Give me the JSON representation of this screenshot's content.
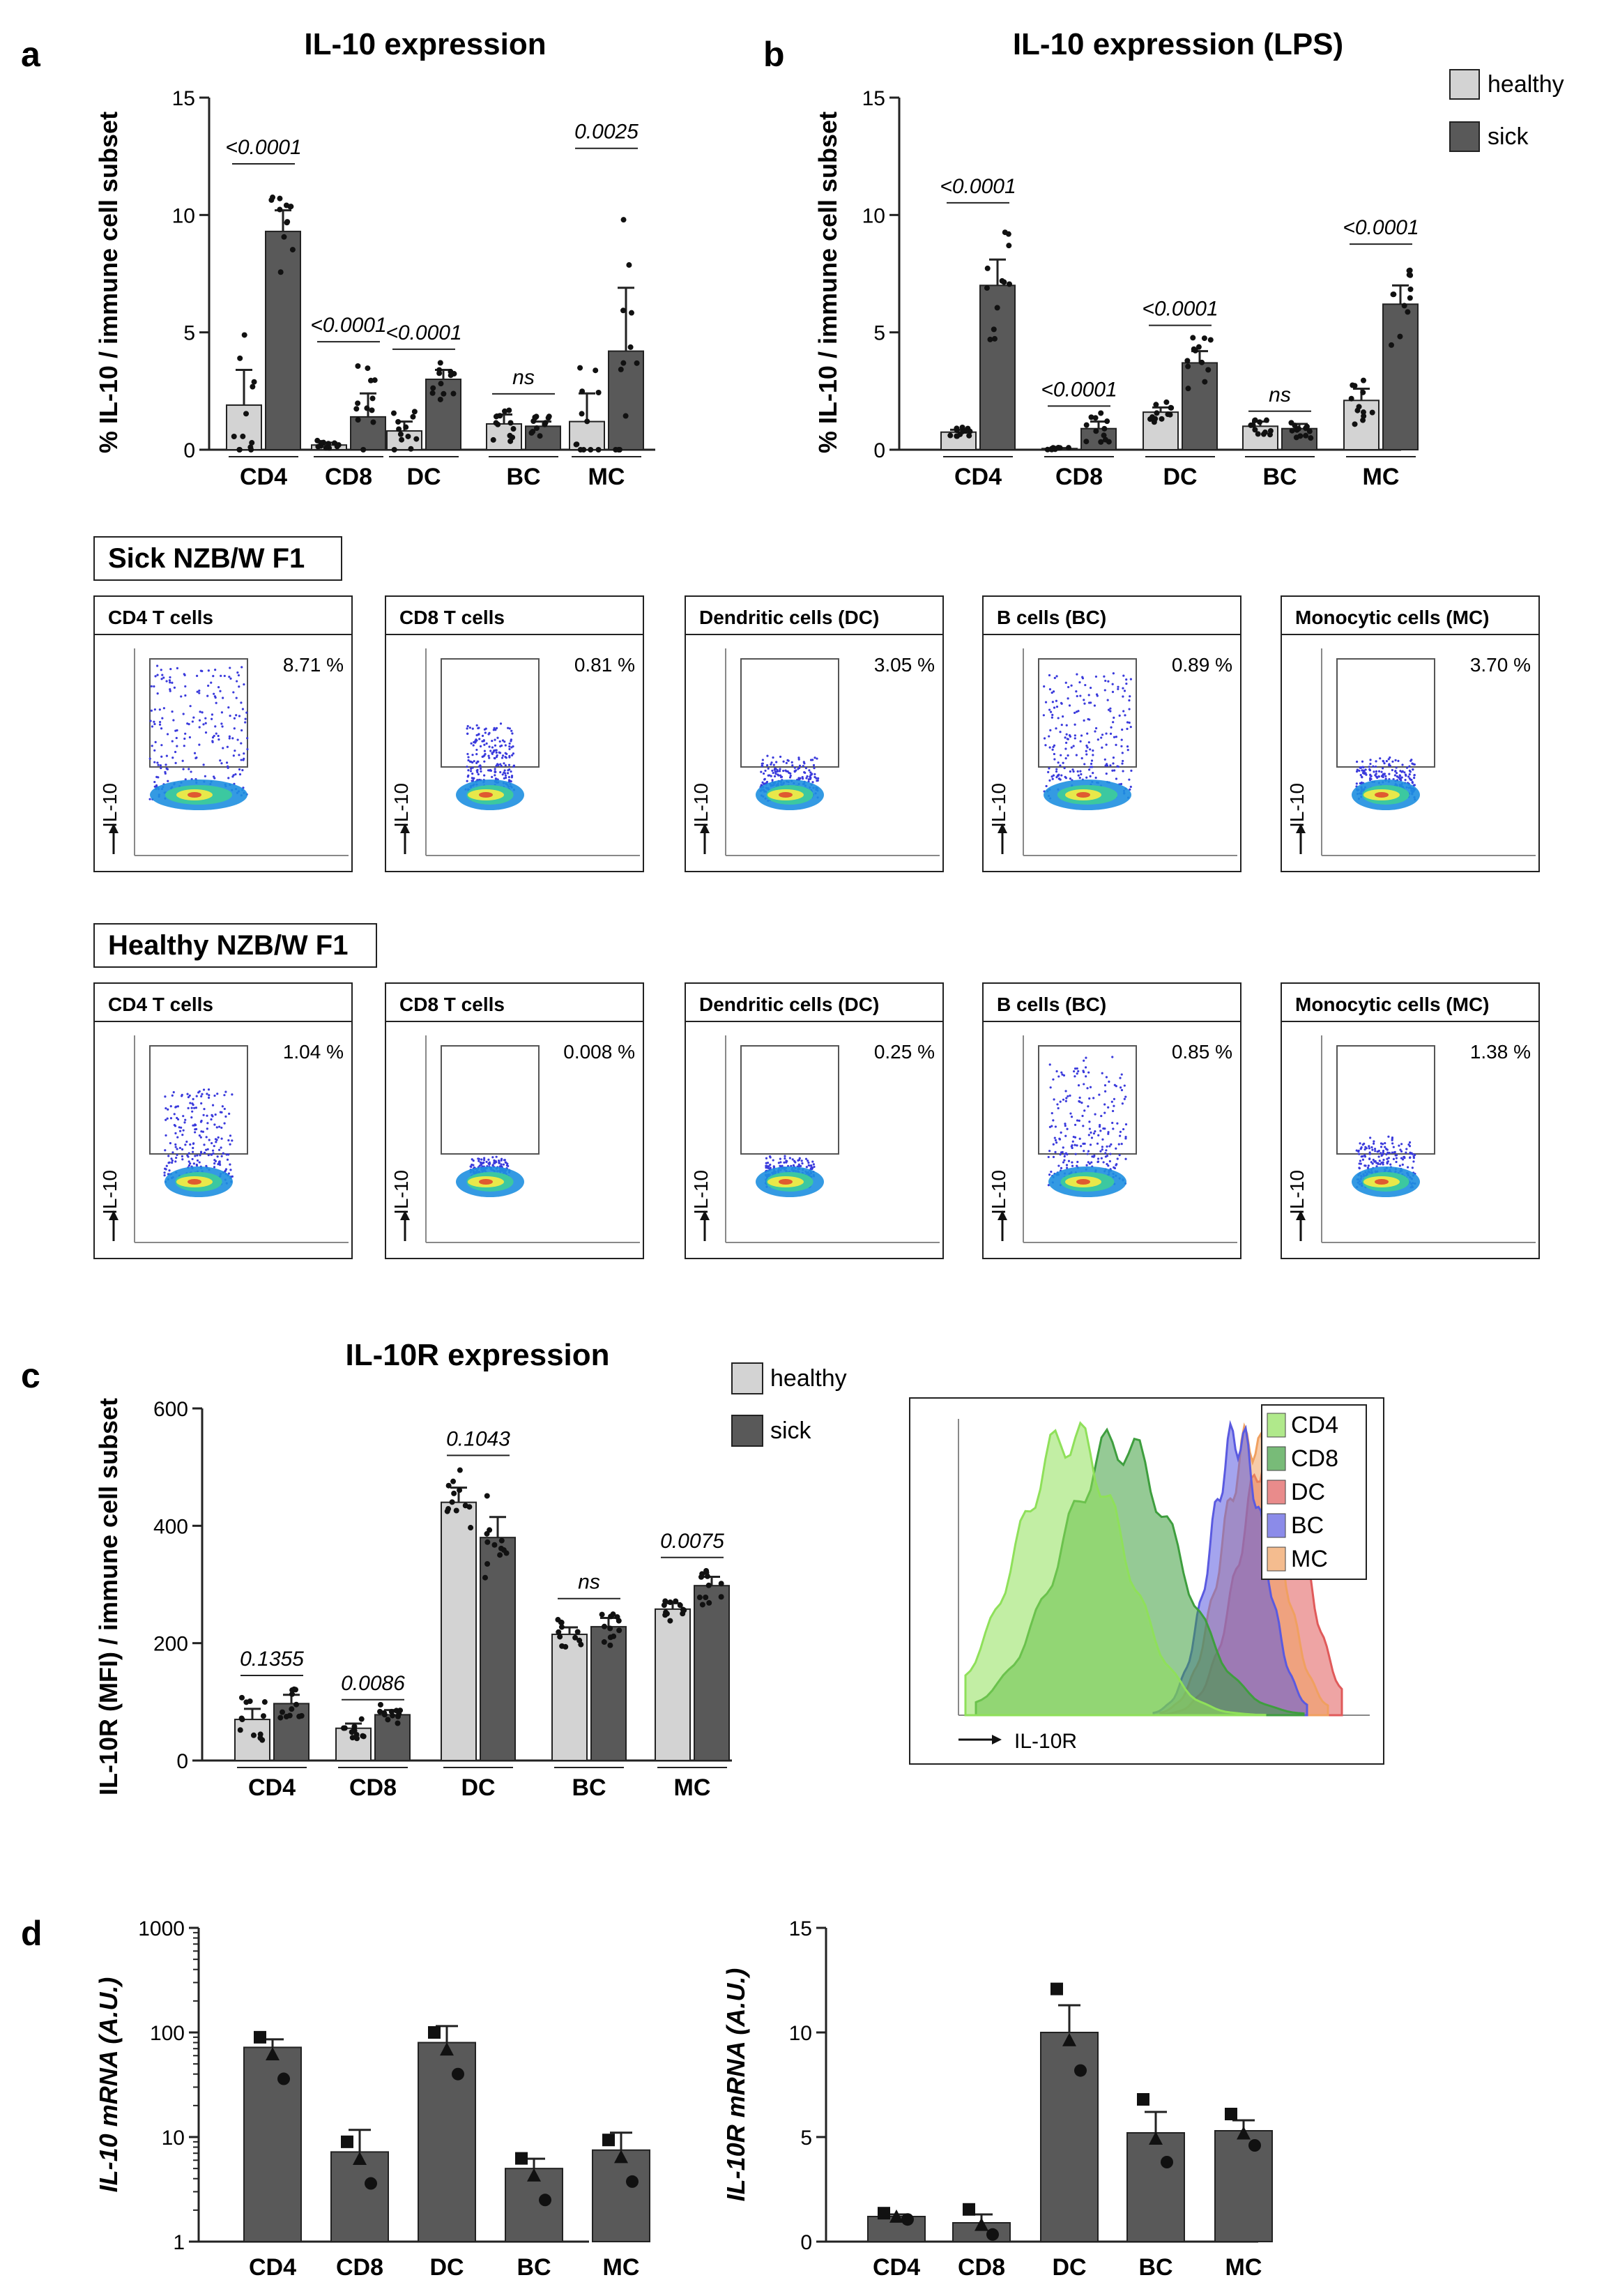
{
  "panels": {
    "a": "a",
    "b": "b",
    "c": "c",
    "d": "d"
  },
  "colors": {
    "healthy": "#d3d3d3",
    "sick": "#595959",
    "bar_dark": "#595959"
  },
  "legend": {
    "healthy": "healthy",
    "sick": "sick"
  },
  "flow": {
    "axis_label": "IL-10",
    "rows": [
      {
        "group": "Sick NZB/W F1",
        "gates": [
          {
            "title": "CD4 T cells",
            "pct": "8.71 %"
          },
          {
            "title": "CD8 T cells",
            "pct": "0.81 %"
          },
          {
            "title": "Dendritic cells (DC)",
            "pct": "3.05 %"
          },
          {
            "title": "B cells (BC)",
            "pct": "0.89 %"
          },
          {
            "title": "Monocytic cells (MC)",
            "pct": "3.70 %"
          }
        ]
      },
      {
        "group": "Healthy NZB/W F1",
        "gates": [
          {
            "title": "CD4 T cells",
            "pct": "1.04 %"
          },
          {
            "title": "CD8 T cells",
            "pct": "0.008 %"
          },
          {
            "title": "Dendritic cells (DC)",
            "pct": "0.25 %"
          },
          {
            "title": "B cells (BC)",
            "pct": "0.85 %"
          },
          {
            "title": "Monocytic cells (MC)",
            "pct": "1.38 %"
          }
        ]
      }
    ]
  },
  "histogram": {
    "xlabel": "IL-10R",
    "legend": [
      {
        "label": "CD4",
        "color": "#8fe05a"
      },
      {
        "label": "CD8",
        "color": "#3e9e3e"
      },
      {
        "label": "DC",
        "color": "#e05a5a"
      },
      {
        "label": "BC",
        "color": "#5a5ae0"
      },
      {
        "label": "MC",
        "color": "#f0a060"
      }
    ]
  },
  "chart_data": [
    {
      "id": "a",
      "type": "bar",
      "title": "IL-10 expression",
      "ylabel": "% IL-10 / immune cell subset",
      "ylim": [
        0,
        15
      ],
      "yticks": [
        0,
        5,
        10,
        15
      ],
      "categories": [
        "CD4",
        "CD8",
        "DC",
        "BC",
        "MC"
      ],
      "series": [
        {
          "name": "healthy",
          "values": [
            1.9,
            0.2,
            0.8,
            1.1,
            1.2
          ]
        },
        {
          "name": "sick",
          "values": [
            9.3,
            1.4,
            3.0,
            1.0,
            4.2
          ]
        }
      ],
      "errors": [
        [
          1.5,
          0.1,
          0.4,
          0.4,
          1.2
        ],
        [
          0.9,
          1.0,
          0.4,
          0.2,
          2.7
        ]
      ],
      "pvalues": [
        "<0.0001",
        "<0.0001",
        "<0.0001",
        "ns",
        "0.0025"
      ]
    },
    {
      "id": "b",
      "type": "bar",
      "title": "IL-10 expression (LPS)",
      "ylabel": "% IL-10 / immune cell subset",
      "ylim": [
        0,
        15
      ],
      "yticks": [
        0,
        5,
        10,
        15
      ],
      "categories": [
        "CD4",
        "CD8",
        "DC",
        "BC",
        "MC"
      ],
      "series": [
        {
          "name": "healthy",
          "values": [
            0.75,
            0.05,
            1.6,
            1.0,
            2.1
          ]
        },
        {
          "name": "sick",
          "values": [
            7.0,
            0.9,
            3.7,
            0.9,
            6.2
          ]
        }
      ],
      "errors": [
        [
          0.1,
          0.02,
          0.2,
          0.2,
          0.5
        ],
        [
          1.1,
          0.3,
          0.5,
          0.2,
          0.8
        ]
      ],
      "pvalues": [
        "<0.0001",
        "<0.0001",
        "<0.0001",
        "ns",
        "<0.0001"
      ]
    },
    {
      "id": "c",
      "type": "bar",
      "title": "IL-10R expression",
      "ylabel": "IL-10R (MFI) / immune cell subset",
      "ylim": [
        0,
        600
      ],
      "yticks": [
        0,
        200,
        400,
        600
      ],
      "categories": [
        "CD4",
        "CD8",
        "DC",
        "BC",
        "MC"
      ],
      "series": [
        {
          "name": "healthy",
          "values": [
            70,
            55,
            440,
            215,
            258
          ]
        },
        {
          "name": "sick",
          "values": [
            97,
            78,
            380,
            228,
            298
          ]
        }
      ],
      "errors": [
        [
          18,
          8,
          25,
          12,
          10
        ],
        [
          15,
          8,
          35,
          15,
          15
        ]
      ],
      "pvalues": [
        "0.1355",
        "0.0086",
        "0.1043",
        "ns",
        "0.0075"
      ]
    },
    {
      "id": "d1",
      "type": "bar",
      "scale": "log",
      "ylabel": "IL-10 mRNA (A.U.)",
      "ylim": [
        1,
        1000
      ],
      "yticks": [
        1,
        10,
        100,
        1000
      ],
      "categories": [
        "CD4",
        "CD8",
        "DC",
        "BC",
        "MC"
      ],
      "values": [
        72,
        7.2,
        80,
        5.0,
        7.5
      ],
      "errors": [
        14,
        4.5,
        35,
        1.2,
        3.5
      ]
    },
    {
      "id": "d2",
      "type": "bar",
      "ylabel": "IL-10R mRNA (A.U.)",
      "ylim": [
        0,
        15
      ],
      "yticks": [
        0,
        5,
        10,
        15
      ],
      "categories": [
        "CD4",
        "CD8",
        "DC",
        "BC",
        "MC"
      ],
      "values": [
        1.2,
        0.9,
        10.0,
        5.2,
        5.3
      ],
      "errors": [
        0.1,
        0.4,
        1.3,
        1.0,
        0.5
      ]
    }
  ]
}
